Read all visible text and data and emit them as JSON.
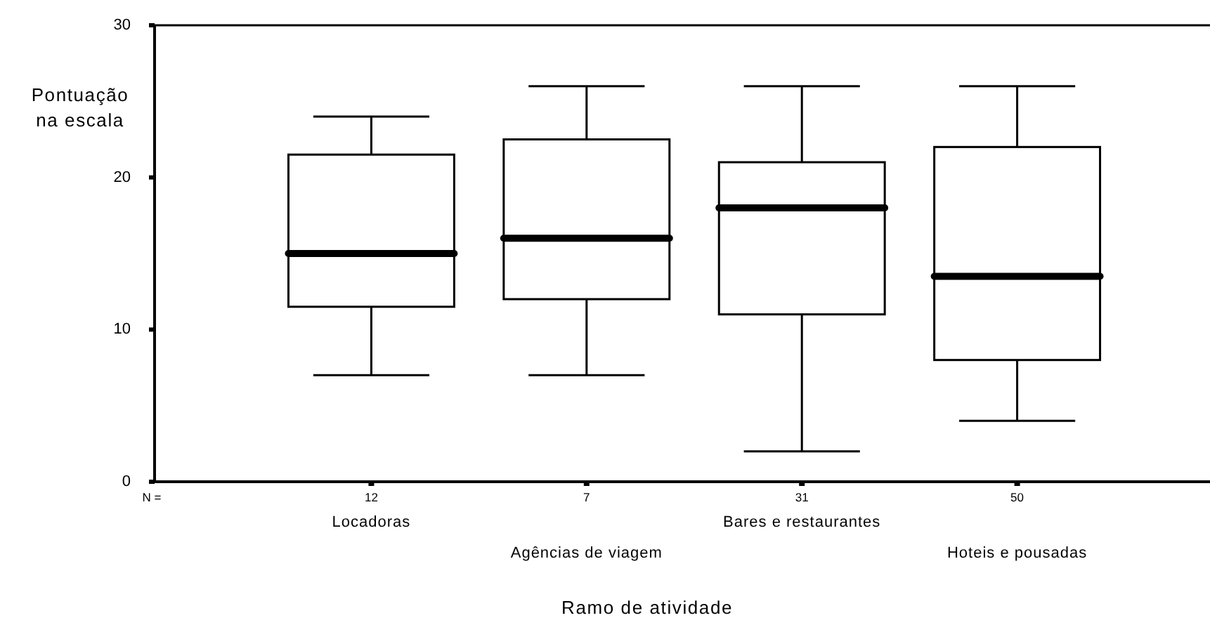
{
  "chart_data": {
    "type": "box",
    "xlabel": "Ramo de atividade",
    "ylabel": "Pontuação na escala",
    "categories": [
      "Locadoras",
      "Agências de viagem",
      "Bares e restaurantes",
      "Hoteis e pousadas"
    ],
    "boxes": [
      {
        "low": 7,
        "q1": 11.5,
        "median": 15,
        "q3": 21.5,
        "high": 24
      },
      {
        "low": 7,
        "q1": 12,
        "median": 16,
        "q3": 22.5,
        "high": 26
      },
      {
        "low": 2,
        "q1": 11,
        "median": 18,
        "q3": 21,
        "high": 26
      },
      {
        "low": 4,
        "q1": 8,
        "median": 13.5,
        "q3": 22,
        "high": 26
      }
    ],
    "ylim": [
      0,
      30
    ],
    "yticks": [
      0,
      10,
      20,
      30
    ],
    "annotations": [
      "N =",
      "12",
      "7",
      "31",
      "50"
    ],
    "grid": false
  }
}
